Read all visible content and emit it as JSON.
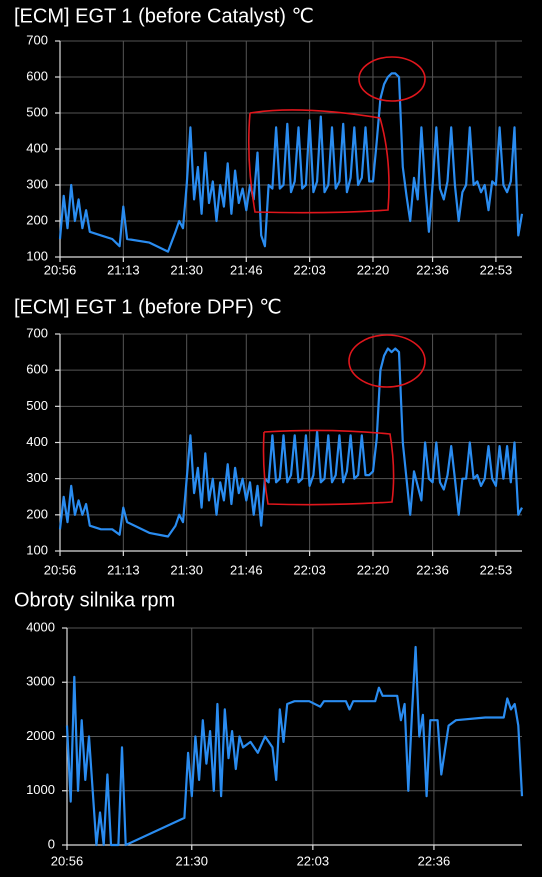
{
  "chart_data": [
    {
      "type": "line",
      "title": "[ECM] EGT 1 (before Catalyst)  ℃",
      "color": "#2a8cf0",
      "grid": true,
      "xlim": [
        "20:56",
        "23:00"
      ],
      "xticks": [
        "20:56",
        "21:13",
        "21:30",
        "21:46",
        "22:03",
        "22:20",
        "22:36",
        "22:53"
      ],
      "ylim": [
        100,
        700
      ],
      "yticks": [
        100,
        200,
        300,
        400,
        500,
        600,
        700
      ],
      "x": [
        "20:56",
        "20:57",
        "20:58",
        "20:59",
        "21:00",
        "21:01",
        "21:02",
        "21:03",
        "21:04",
        "21:07",
        "21:10",
        "21:12",
        "21:13",
        "21:14",
        "21:20",
        "21:25",
        "21:27",
        "21:28",
        "21:29",
        "21:30",
        "21:31",
        "21:32",
        "21:33",
        "21:34",
        "21:35",
        "21:36",
        "21:37",
        "21:38",
        "21:39",
        "21:40",
        "21:41",
        "21:42",
        "21:43",
        "21:44",
        "21:45",
        "21:46",
        "21:47",
        "21:48",
        "21:49",
        "21:50",
        "21:51",
        "21:52",
        "21:53",
        "21:54",
        "21:55",
        "21:56",
        "21:57",
        "21:58",
        "21:59",
        "22:00",
        "22:01",
        "22:02",
        "22:03",
        "22:04",
        "22:05",
        "22:06",
        "22:07",
        "22:08",
        "22:09",
        "22:10",
        "22:11",
        "22:12",
        "22:13",
        "22:14",
        "22:15",
        "22:16",
        "22:17",
        "22:18",
        "22:19",
        "22:20",
        "22:21",
        "22:22",
        "22:23",
        "22:24",
        "22:25",
        "22:26",
        "22:27",
        "22:28",
        "22:29",
        "22:30",
        "22:31",
        "22:32",
        "22:33",
        "22:34",
        "22:35",
        "22:36",
        "22:37",
        "22:38",
        "22:39",
        "22:40",
        "22:41",
        "22:42",
        "22:43",
        "22:44",
        "22:45",
        "22:46",
        "22:47",
        "22:48",
        "22:49",
        "22:50",
        "22:51",
        "22:52",
        "22:53",
        "22:54",
        "22:55",
        "22:56",
        "22:57",
        "22:58",
        "22:59",
        "23:00"
      ],
      "values": [
        150,
        270,
        180,
        300,
        200,
        260,
        180,
        230,
        170,
        160,
        150,
        130,
        240,
        150,
        140,
        115,
        170,
        200,
        180,
        300,
        460,
        260,
        350,
        220,
        390,
        250,
        310,
        200,
        300,
        240,
        360,
        220,
        340,
        250,
        290,
        230,
        300,
        260,
        390,
        160,
        130,
        300,
        290,
        460,
        290,
        300,
        470,
        280,
        310,
        460,
        290,
        300,
        480,
        280,
        310,
        490,
        280,
        300,
        460,
        290,
        310,
        470,
        280,
        320,
        460,
        300,
        320,
        460,
        310,
        310,
        420,
        540,
        580,
        600,
        610,
        610,
        600,
        350,
        270,
        200,
        320,
        260,
        460,
        300,
        170,
        300,
        460,
        290,
        260,
        310,
        460,
        300,
        200,
        280,
        300,
        460,
        300,
        310,
        280,
        300,
        230,
        310,
        300,
        460,
        300,
        280,
        310,
        460,
        160,
        220
      ]
    },
    {
      "type": "line",
      "title": "[ECM] EGT 1 (before DPF)  ℃",
      "color": "#2a8cf0",
      "grid": true,
      "xlim": [
        "20:56",
        "23:00"
      ],
      "xticks": [
        "20:56",
        "21:13",
        "21:30",
        "21:46",
        "22:03",
        "22:20",
        "22:36",
        "22:53"
      ],
      "ylim": [
        100,
        700
      ],
      "yticks": [
        100,
        200,
        300,
        400,
        500,
        600,
        700
      ],
      "x": [
        "20:56",
        "20:57",
        "20:58",
        "20:59",
        "21:00",
        "21:01",
        "21:02",
        "21:03",
        "21:04",
        "21:07",
        "21:10",
        "21:12",
        "21:13",
        "21:14",
        "21:20",
        "21:25",
        "21:27",
        "21:28",
        "21:29",
        "21:30",
        "21:31",
        "21:32",
        "21:33",
        "21:34",
        "21:35",
        "21:36",
        "21:37",
        "21:38",
        "21:39",
        "21:40",
        "21:41",
        "21:42",
        "21:43",
        "21:44",
        "21:45",
        "21:46",
        "21:47",
        "21:48",
        "21:49",
        "21:50",
        "21:51",
        "21:52",
        "21:53",
        "21:54",
        "21:55",
        "21:56",
        "21:57",
        "21:58",
        "21:59",
        "22:00",
        "22:01",
        "22:02",
        "22:03",
        "22:04",
        "22:05",
        "22:06",
        "22:07",
        "22:08",
        "22:09",
        "22:10",
        "22:11",
        "22:12",
        "22:13",
        "22:14",
        "22:15",
        "22:16",
        "22:17",
        "22:18",
        "22:19",
        "22:20",
        "22:21",
        "22:22",
        "22:23",
        "22:24",
        "22:25",
        "22:26",
        "22:27",
        "22:28",
        "22:29",
        "22:30",
        "22:31",
        "22:32",
        "22:33",
        "22:34",
        "22:35",
        "22:36",
        "22:37",
        "22:38",
        "22:39",
        "22:40",
        "22:41",
        "22:42",
        "22:43",
        "22:44",
        "22:45",
        "22:46",
        "22:47",
        "22:48",
        "22:49",
        "22:50",
        "22:51",
        "22:52",
        "22:53",
        "22:54",
        "22:55",
        "22:56",
        "22:57",
        "22:58",
        "22:59",
        "23:00"
      ],
      "values": [
        160,
        250,
        180,
        280,
        200,
        240,
        200,
        230,
        170,
        160,
        160,
        145,
        220,
        180,
        150,
        140,
        170,
        200,
        180,
        300,
        420,
        260,
        330,
        220,
        370,
        240,
        300,
        200,
        290,
        240,
        340,
        230,
        330,
        260,
        300,
        240,
        290,
        200,
        280,
        170,
        300,
        290,
        420,
        290,
        300,
        420,
        290,
        310,
        420,
        290,
        300,
        420,
        280,
        310,
        430,
        290,
        300,
        420,
        290,
        310,
        420,
        290,
        320,
        420,
        300,
        310,
        420,
        310,
        310,
        320,
        410,
        600,
        640,
        660,
        650,
        660,
        650,
        400,
        300,
        200,
        320,
        280,
        240,
        400,
        300,
        290,
        400,
        290,
        270,
        310,
        390,
        300,
        200,
        300,
        300,
        400,
        300,
        310,
        280,
        300,
        390,
        300,
        280,
        390,
        300,
        390,
        290,
        400,
        200,
        220
      ]
    },
    {
      "type": "line",
      "title": "Obroty silnika  rpm",
      "color": "#2a8cf0",
      "grid": true,
      "xlim": [
        "20:56",
        "23:00"
      ],
      "xticks": [
        "20:56",
        "21:30",
        "22:03",
        "22:36"
      ],
      "ylim": [
        0,
        4000
      ],
      "yticks": [
        0,
        1000,
        2000,
        3000,
        4000
      ],
      "x": [
        "20:56",
        "20:57",
        "20:58",
        "20:59",
        "21:00",
        "21:01",
        "21:02",
        "21:03",
        "21:04",
        "21:05",
        "21:06",
        "21:07",
        "21:08",
        "21:10",
        "21:11",
        "21:12",
        "21:28",
        "21:29",
        "21:30",
        "21:31",
        "21:32",
        "21:33",
        "21:34",
        "21:35",
        "21:36",
        "21:37",
        "21:38",
        "21:39",
        "21:40",
        "21:41",
        "21:42",
        "21:43",
        "21:44",
        "21:46",
        "21:48",
        "21:50",
        "21:52",
        "21:53",
        "21:54",
        "21:55",
        "21:56",
        "21:58",
        "22:02",
        "22:05",
        "22:06",
        "22:12",
        "22:13",
        "22:14",
        "22:20",
        "22:21",
        "22:22",
        "22:26",
        "22:27",
        "22:28",
        "22:29",
        "22:30",
        "22:31",
        "22:32",
        "22:33",
        "22:34",
        "22:35",
        "22:37",
        "22:38",
        "22:40",
        "22:42",
        "22:50",
        "22:55",
        "22:56",
        "22:57",
        "22:58",
        "22:59",
        "23:00"
      ],
      "values": [
        2200,
        800,
        3100,
        1000,
        2300,
        1200,
        2000,
        1000,
        0,
        600,
        0,
        1300,
        0,
        0,
        1800,
        0,
        500,
        1700,
        900,
        2000,
        1200,
        2300,
        1500,
        2100,
        1000,
        2600,
        900,
        2500,
        1600,
        2100,
        1400,
        2000,
        1800,
        1900,
        1700,
        2000,
        1800,
        1200,
        2500,
        1900,
        2600,
        2650,
        2650,
        2550,
        2650,
        2650,
        2500,
        2650,
        2650,
        2900,
        2750,
        2750,
        2300,
        2600,
        1000,
        2400,
        3650,
        2000,
        2400,
        900,
        2300,
        2300,
        1300,
        2200,
        2300,
        2350,
        2350,
        2700,
        2500,
        2600,
        2200,
        900
      ]
    }
  ]
}
